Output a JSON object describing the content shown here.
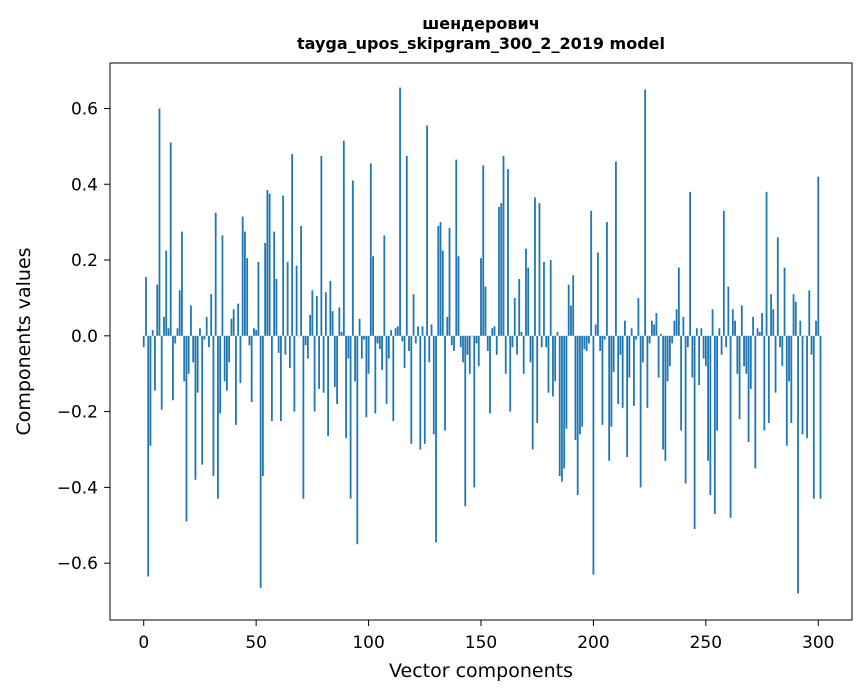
{
  "chart_data": {
    "type": "bar",
    "title": "шендерович",
    "subtitle": "tayga_upos_skipgram_300_2_2019 model",
    "xlabel": "Vector components",
    "ylabel": "Components values",
    "xlim": [
      -15,
      315
    ],
    "ylim": [
      -0.75,
      0.72
    ],
    "xticks": [
      0,
      50,
      100,
      150,
      200,
      250,
      300
    ],
    "yticks": [
      -0.6,
      -0.4,
      -0.2,
      0.0,
      0.2,
      0.4,
      0.6
    ],
    "ytick_labels": [
      "−0.6",
      "−0.4",
      "−0.2",
      "0.0",
      "0.2",
      "0.4",
      "0.6"
    ],
    "bar_color": "#1f77b4",
    "grid": false,
    "values": [
      -0.03,
      0.155,
      -0.635,
      -0.29,
      0.015,
      -0.145,
      0.135,
      0.6,
      -0.195,
      0.05,
      0.225,
      0.02,
      0.51,
      -0.17,
      -0.02,
      0.02,
      0.12,
      0.275,
      -0.12,
      -0.49,
      -0.1,
      0.08,
      -0.07,
      -0.38,
      -0.15,
      0.02,
      -0.34,
      -0.01,
      0.05,
      -0.03,
      0.11,
      -0.37,
      0.325,
      -0.43,
      -0.205,
      0.265,
      -0.12,
      -0.145,
      -0.07,
      0.045,
      0.07,
      -0.235,
      0.085,
      -0.125,
      0.315,
      0.275,
      0.205,
      -0.025,
      -0.175,
      0.02,
      0.015,
      0.195,
      -0.665,
      -0.37,
      0.245,
      0.385,
      0.375,
      -0.225,
      0.275,
      0.15,
      -0.045,
      -0.225,
      0.37,
      -0.05,
      0.195,
      -0.085,
      0.48,
      -0.2,
      0.185,
      0.0,
      0.29,
      -0.43,
      -0.025,
      -0.06,
      0.055,
      0.12,
      -0.2,
      0.105,
      -0.14,
      0.475,
      -0.15,
      0.115,
      -0.265,
      0.145,
      0.065,
      -0.135,
      -0.18,
      0.075,
      0.01,
      0.515,
      -0.27,
      -0.06,
      -0.43,
      0.41,
      -0.12,
      -0.55,
      0.045,
      -0.06,
      -0.01,
      -0.215,
      -0.1,
      0.455,
      0.21,
      -0.205,
      -0.02,
      -0.035,
      -0.09,
      0.265,
      -0.18,
      -0.06,
      0.015,
      -0.225,
      0.02,
      0.025,
      0.655,
      -0.015,
      -0.085,
      0.475,
      -0.04,
      -0.285,
      0.11,
      -0.02,
      0.025,
      -0.3,
      0.025,
      -0.285,
      0.555,
      -0.07,
      0.03,
      -0.26,
      -0.545,
      0.29,
      0.3,
      0.225,
      -0.25,
      0.05,
      0.285,
      -0.025,
      -0.04,
      0.465,
      0.21,
      -0.03,
      -0.07,
      -0.45,
      -0.05,
      -0.1,
      0.0,
      -0.4,
      -0.02,
      -0.08,
      0.205,
      0.45,
      0.13,
      -0.04,
      -0.205,
      0.02,
      0.025,
      -0.05,
      0.34,
      0.35,
      0.475,
      -0.1,
      0.44,
      -0.2,
      -0.03,
      0.1,
      -0.05,
      0.15,
      0.01,
      -0.1,
      0.23,
      0.18,
      -0.07,
      -0.3,
      0.365,
      -0.23,
      0.35,
      -0.03,
      0.195,
      -0.03,
      -0.15,
      0.2,
      -0.16,
      -0.12,
      0.01,
      -0.37,
      -0.385,
      -0.35,
      -0.245,
      0.135,
      0.08,
      0.16,
      -0.275,
      -0.42,
      -0.26,
      -0.24,
      -0.035,
      -0.04,
      -0.02,
      0.33,
      -0.63,
      0.03,
      0.22,
      -0.04,
      -0.235,
      -0.01,
      0.3,
      -0.33,
      -0.24,
      -0.095,
      0.46,
      -0.18,
      -0.05,
      -0.19,
      0.04,
      -0.32,
      -0.11,
      0.02,
      -0.185,
      -0.01,
      0.1,
      -0.4,
      -0.07,
      0.65,
      -0.19,
      -0.02,
      0.04,
      0.03,
      0.06,
      -0.11,
      0.005,
      -0.3,
      -0.33,
      -0.12,
      -0.08,
      -0.02,
      0.04,
      0.07,
      0.18,
      -0.25,
      0.05,
      -0.39,
      -0.03,
      0.38,
      -0.11,
      -0.51,
      0.02,
      -0.13,
      0.02,
      -0.06,
      -0.08,
      -0.33,
      -0.42,
      0.07,
      -0.47,
      -0.25,
      0.02,
      -0.05,
      0.33,
      -0.03,
      0.13,
      -0.48,
      0.07,
      0.04,
      -0.1,
      -0.22,
      0.08,
      -0.08,
      -0.1,
      -0.28,
      -0.14,
      0.05,
      -0.35,
      0.02,
      0.01,
      0.06,
      -0.25,
      0.38,
      -0.23,
      0.11,
      0.07,
      -0.15,
      0.26,
      -0.03,
      -0.08,
      0.18,
      -0.29,
      -0.12,
      -0.23,
      0.11,
      0.09,
      -0.68,
      0.04,
      -0.26,
      0.0,
      -0.27,
      0.12,
      -0.05,
      -0.43,
      0.04,
      0.42,
      -0.43
    ]
  }
}
